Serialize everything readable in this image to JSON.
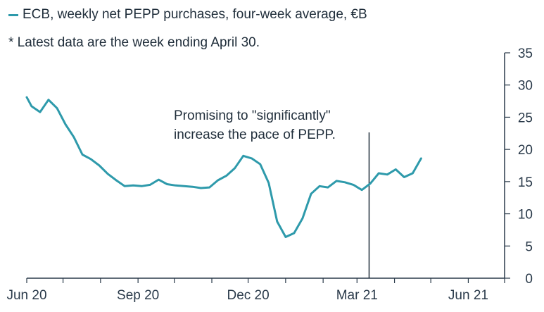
{
  "chart_data": {
    "type": "line",
    "legend": "ECB, weekly net PEPP purchases, four-week average, €B",
    "note": "* Latest data are the week ending April 30.",
    "annotation": {
      "lines": [
        "Promising to \"significantly\"",
        "increase the pace of PEPP."
      ],
      "x": "2021-03-11"
    },
    "x_ticks": [
      "Jun 20",
      "Sep 20",
      "Dec 20",
      "Mar 21",
      "Jun 21"
    ],
    "y_ticks": [
      0,
      5,
      10,
      15,
      20,
      25,
      30,
      35
    ],
    "ylim": [
      0,
      35
    ],
    "xlim": [
      "2020-06-01",
      "2021-07-01"
    ],
    "grid": false,
    "y_axis_position": "right",
    "series": [
      {
        "name": "ECB, weekly net PEPP purchases, four-week average, €B",
        "color": "#2e9aab",
        "x": [
          "2020-06-01",
          "2020-06-05",
          "2020-06-12",
          "2020-06-19",
          "2020-06-26",
          "2020-07-03",
          "2020-07-10",
          "2020-07-17",
          "2020-07-24",
          "2020-07-31",
          "2020-08-07",
          "2020-08-14",
          "2020-08-21",
          "2020-08-28",
          "2020-09-04",
          "2020-09-11",
          "2020-09-18",
          "2020-09-25",
          "2020-10-02",
          "2020-10-09",
          "2020-10-16",
          "2020-10-23",
          "2020-10-30",
          "2020-11-06",
          "2020-11-13",
          "2020-11-20",
          "2020-11-27",
          "2020-12-04",
          "2020-12-11",
          "2020-12-18",
          "2020-12-25",
          "2021-01-01",
          "2021-01-08",
          "2021-01-15",
          "2021-01-22",
          "2021-01-29",
          "2021-02-05",
          "2021-02-12",
          "2021-02-19",
          "2021-02-26",
          "2021-03-05",
          "2021-03-12",
          "2021-03-19",
          "2021-03-26",
          "2021-04-02",
          "2021-04-09",
          "2021-04-16",
          "2021-04-23",
          "2021-04-30"
        ],
        "values": [
          28.1,
          26.7,
          25.8,
          27.7,
          26.4,
          23.9,
          21.9,
          19.2,
          18.5,
          17.5,
          16.2,
          15.2,
          14.3,
          14.4,
          14.3,
          14.5,
          15.3,
          14.6,
          14.4,
          14.3,
          14.2,
          14.0,
          14.1,
          15.2,
          15.9,
          17.1,
          19.0,
          18.6,
          17.7,
          14.8,
          8.8,
          6.4,
          7.0,
          9.3,
          13.1,
          14.3,
          14.1,
          15.1,
          14.9,
          14.5,
          13.7,
          14.7,
          16.3,
          16.1,
          16.9,
          15.7,
          16.3,
          18.6,
          null
        ]
      }
    ]
  }
}
